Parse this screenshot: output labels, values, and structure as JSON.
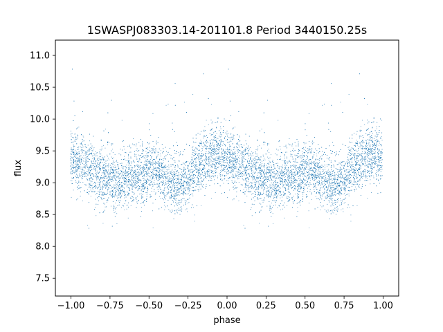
{
  "chart_data": {
    "type": "scatter",
    "title": "1SWASPJ083303.14-201101.8 Period 3440150.25s",
    "xlabel": "phase",
    "ylabel": "flux",
    "xlim": [
      -1.1,
      1.1
    ],
    "ylim": [
      7.22,
      11.24
    ],
    "xticks": [
      -1.0,
      -0.75,
      -0.5,
      -0.25,
      0.0,
      0.25,
      0.5,
      0.75,
      1.0
    ],
    "xtick_labels": [
      "−1.00",
      "−0.75",
      "−0.50",
      "−0.25",
      "0.00",
      "0.25",
      "0.50",
      "0.75",
      "1.00"
    ],
    "yticks": [
      7.5,
      8.0,
      8.5,
      9.0,
      9.5,
      10.0,
      10.5,
      11.0
    ],
    "ytick_labels": [
      "7.5",
      "8.0",
      "8.5",
      "9.0",
      "9.5",
      "10.0",
      "10.5",
      "11.0"
    ],
    "grid": false,
    "marker_color": "#1f77b4",
    "trend": {
      "description_phase": [
        0.0,
        0.05,
        0.1,
        0.15,
        0.2,
        0.25,
        0.3,
        0.35,
        0.4,
        0.45,
        0.5,
        0.55,
        0.6,
        0.65,
        0.7,
        0.75,
        0.8,
        0.85,
        0.9,
        0.95,
        1.0
      ],
      "median_flux": [
        9.35,
        9.3,
        9.25,
        9.15,
        9.1,
        9.05,
        9.0,
        9.05,
        9.1,
        9.1,
        9.2,
        9.2,
        9.05,
        9.0,
        8.95,
        9.05,
        9.2,
        9.35,
        9.45,
        9.45,
        9.35
      ]
    },
    "n_points": 12000
  }
}
